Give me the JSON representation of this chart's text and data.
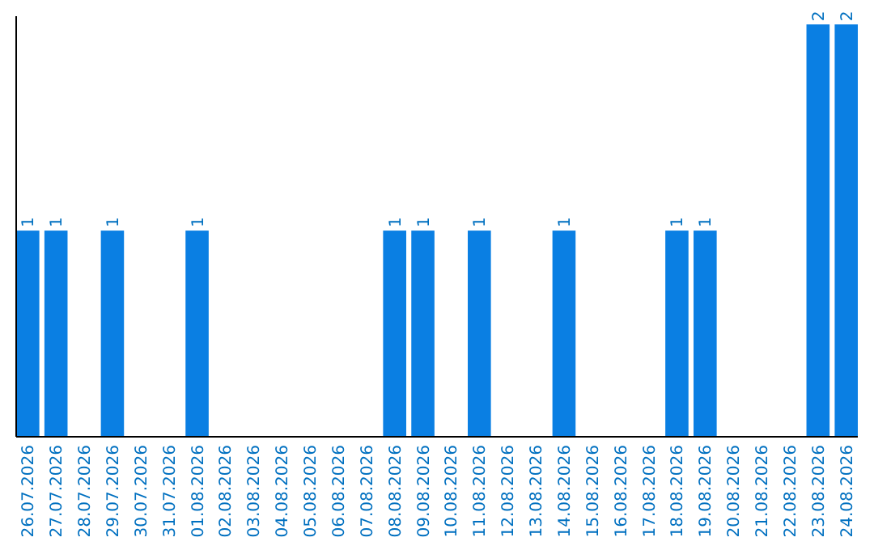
{
  "chart_data": {
    "type": "bar",
    "categories": [
      "26.07.2026",
      "27.07.2026",
      "28.07.2026",
      "29.07.2026",
      "30.07.2026",
      "31.07.2026",
      "01.08.2026",
      "02.08.2026",
      "03.08.2026",
      "04.08.2026",
      "05.08.2026",
      "06.08.2026",
      "07.08.2026",
      "08.08.2026",
      "09.08.2026",
      "10.08.2026",
      "11.08.2026",
      "12.08.2026",
      "13.08.2026",
      "14.08.2026",
      "15.08.2026",
      "16.08.2026",
      "17.08.2026",
      "18.08.2026",
      "19.08.2026",
      "20.08.2026",
      "21.08.2026",
      "22.08.2026",
      "23.08.2026",
      "24.08.2026"
    ],
    "values": [
      1,
      1,
      0,
      1,
      0,
      0,
      1,
      0,
      0,
      0,
      0,
      0,
      0,
      1,
      1,
      0,
      1,
      0,
      0,
      1,
      0,
      0,
      0,
      1,
      1,
      0,
      0,
      0,
      2,
      2
    ],
    "value_labels": [
      "1",
      "1",
      null,
      "1",
      null,
      null,
      "1",
      null,
      null,
      null,
      null,
      null,
      null,
      "1",
      "1",
      null,
      "1",
      null,
      null,
      "1",
      null,
      null,
      null,
      "1",
      "1",
      null,
      null,
      null,
      "2",
      "2"
    ],
    "color": "#0a7fe3",
    "ylim": [
      0,
      2.04
    ],
    "tick_labels": "x"
  }
}
